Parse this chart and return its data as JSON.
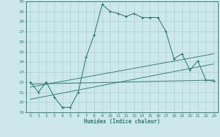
{
  "xlabel": "Humidex (Indice chaleur)",
  "bg_color": "#cce8ec",
  "line_color": "#2d7d6e",
  "grid_color": "#aacdd4",
  "xlim": [
    -0.5,
    23.5
  ],
  "ylim": [
    19,
    30
  ],
  "xticks": [
    0,
    1,
    2,
    3,
    4,
    5,
    6,
    7,
    8,
    9,
    10,
    11,
    12,
    13,
    14,
    15,
    16,
    17,
    18,
    19,
    20,
    21,
    22,
    23
  ],
  "yticks": [
    19,
    20,
    21,
    22,
    23,
    24,
    25,
    26,
    27,
    28,
    29,
    30
  ],
  "main_curve_x": [
    0,
    1,
    2,
    3,
    4,
    5,
    6,
    7,
    8,
    9,
    10,
    11,
    12,
    13,
    14,
    15,
    16,
    17,
    18,
    19,
    20,
    21,
    22,
    23
  ],
  "main_curve_y": [
    22.0,
    21.0,
    22.0,
    20.5,
    19.5,
    19.5,
    21.0,
    24.5,
    26.7,
    29.7,
    29.0,
    28.8,
    28.5,
    28.8,
    28.4,
    28.4,
    28.4,
    27.0,
    24.3,
    24.8,
    23.2,
    24.1,
    22.2,
    22.1
  ],
  "line1_x": [
    0,
    23
  ],
  "line1_y": [
    21.8,
    22.2
  ],
  "line2_x": [
    0,
    23
  ],
  "line2_y": [
    21.5,
    24.8
  ],
  "line3_x": [
    0,
    23
  ],
  "line3_y": [
    20.3,
    23.8
  ]
}
